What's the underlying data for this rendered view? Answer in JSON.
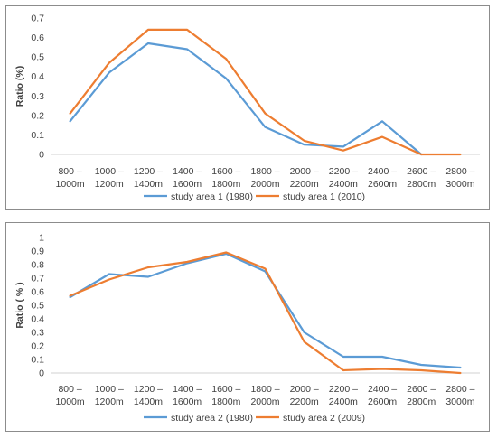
{
  "chart_data": [
    {
      "type": "line",
      "title": "",
      "xlabel": "",
      "ylabel": "Ratio (%)",
      "categories": [
        [
          "800 –",
          "1000m"
        ],
        [
          "1000 –",
          "1200m"
        ],
        [
          "1200 –",
          "1400m"
        ],
        [
          "1400 –",
          "1600m"
        ],
        [
          "1600 –",
          "1800m"
        ],
        [
          "1800 –",
          "2000m"
        ],
        [
          "2000 –",
          "2200m"
        ],
        [
          "2200 –",
          "2400m"
        ],
        [
          "2400 –",
          "2600m"
        ],
        [
          "2600 –",
          "2800m"
        ],
        [
          "2800 –",
          "3000m"
        ]
      ],
      "ylim": [
        0,
        0.7
      ],
      "yticks": [
        "0",
        "0.1",
        "0.2",
        "0.3",
        "0.4",
        "0.5",
        "0.6",
        "0.7"
      ],
      "grid": false,
      "legend_position": "bottom",
      "series": [
        {
          "name": "study area 1 (1980)",
          "color": "#5b9bd5",
          "values": [
            0.17,
            0.42,
            0.57,
            0.54,
            0.39,
            0.14,
            0.05,
            0.04,
            0.17,
            0.0,
            null
          ]
        },
        {
          "name": "study area 1 (2010)",
          "color": "#ed7d31",
          "values": [
            0.21,
            0.47,
            0.64,
            0.64,
            0.49,
            0.21,
            0.07,
            0.02,
            0.09,
            0.0,
            0.0
          ]
        }
      ]
    },
    {
      "type": "line",
      "title": "",
      "xlabel": "",
      "ylabel": "Ratio ( % )",
      "categories": [
        [
          "800 –",
          "1000m"
        ],
        [
          "1000 –",
          "1200m"
        ],
        [
          "1200 –",
          "1400m"
        ],
        [
          "1400 –",
          "1600m"
        ],
        [
          "1600 –",
          "1800m"
        ],
        [
          "1800 –",
          "2000m"
        ],
        [
          "2000 –",
          "2200m"
        ],
        [
          "2200 –",
          "2400m"
        ],
        [
          "2400 –",
          "2600m"
        ],
        [
          "2600 –",
          "2800m"
        ],
        [
          "2800 –",
          "3000m"
        ]
      ],
      "ylim": [
        0,
        1
      ],
      "yticks": [
        "0",
        "0.1",
        "0.2",
        "0.3",
        "0.4",
        "0.5",
        "0.6",
        "0.7",
        "0.8",
        "0.9",
        "1"
      ],
      "grid": false,
      "legend_position": "bottom",
      "series": [
        {
          "name": "study area 2 (1980)",
          "color": "#5b9bd5",
          "values": [
            0.56,
            0.73,
            0.71,
            0.81,
            0.88,
            0.75,
            0.3,
            0.12,
            0.12,
            0.06,
            0.04
          ]
        },
        {
          "name": "study area 2  (2009)",
          "color": "#ed7d31",
          "values": [
            0.57,
            0.69,
            0.78,
            0.82,
            0.89,
            0.77,
            0.23,
            0.02,
            0.03,
            0.02,
            0.0
          ]
        }
      ]
    }
  ]
}
